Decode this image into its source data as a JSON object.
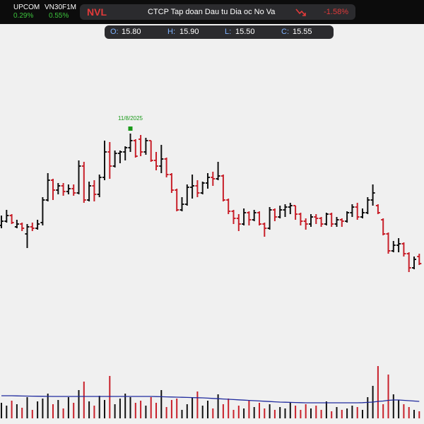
{
  "header": {
    "indices": [
      {
        "name": "UPCOM",
        "change": "0.29%"
      },
      {
        "name": "VN30F1M",
        "change": "0.55%"
      }
    ],
    "symbol": "NVL",
    "company": "CTCP Tap doan Dau tu Dia oc No Va",
    "change": "-1.58%"
  },
  "ohlc_box": [
    {
      "label": "O:",
      "value": "15.80"
    },
    {
      "label": "H:",
      "value": "15.90"
    },
    {
      "label": "L:",
      "value": "15.50"
    },
    {
      "label": "C:",
      "value": "15.55"
    }
  ],
  "chart_data": {
    "type": "ohlc",
    "annotation": "11/8/2025",
    "annotation_color": "#1a9a1a",
    "up_color": "#111111",
    "down_color": "#c8202a",
    "ma_color": "#1f2a9e",
    "ylim": [
      12,
      23.5
    ],
    "volume_ylim": [
      0,
      80
    ],
    "open": [
      16.9,
      17.05,
      17.25,
      16.85,
      16.95,
      16.6,
      16.85,
      16.8,
      17.0,
      17.8,
      18.5,
      18.15,
      18.3,
      18.1,
      18.2,
      18.05,
      19.0,
      17.8,
      18.3,
      18.0,
      18.6,
      19.5,
      19.0,
      19.45,
      19.5,
      19.65,
      19.9,
      19.95,
      19.5,
      19.9,
      19.2,
      19.0,
      19.25,
      18.7,
      18.15,
      17.45,
      17.65,
      18.25,
      18.3,
      18.05,
      18.4,
      18.6,
      18.55,
      18.65,
      17.8,
      17.4,
      17.15,
      16.95,
      17.35,
      17.1,
      17.35,
      16.95,
      16.8,
      17.45,
      17.2,
      17.45,
      17.55,
      17.6,
      17.3,
      17.05,
      16.95,
      17.2,
      17.15,
      16.95,
      17.3,
      16.95,
      17.1,
      17.05,
      17.35,
      17.55,
      17.2,
      17.35,
      17.8,
      17.6,
      17.1,
      16.6,
      16.0,
      16.2,
      16.25,
      15.9,
      15.4,
      15.8
    ],
    "high": [
      17.25,
      17.45,
      17.3,
      17.1,
      17.0,
      16.95,
      17.0,
      17.1,
      17.9,
      18.75,
      18.55,
      18.4,
      18.4,
      18.35,
      18.35,
      19.2,
      19.15,
      18.45,
      18.5,
      18.7,
      19.9,
      19.85,
      19.55,
      19.55,
      19.7,
      20.15,
      19.95,
      20.1,
      20.0,
      19.9,
      19.5,
      19.75,
      19.3,
      18.75,
      18.2,
      17.9,
      18.35,
      18.7,
      18.5,
      18.45,
      18.75,
      18.8,
      19.15,
      18.7,
      17.85,
      17.45,
      17.3,
      17.5,
      17.4,
      17.45,
      17.4,
      17.0,
      17.55,
      17.5,
      17.6,
      17.65,
      17.7,
      17.6,
      17.35,
      17.15,
      17.3,
      17.3,
      17.2,
      17.35,
      17.35,
      17.2,
      17.15,
      17.4,
      17.65,
      17.7,
      17.5,
      17.9,
      18.35,
      17.65,
      17.15,
      16.65,
      16.35,
      16.45,
      16.3,
      15.95,
      15.8,
      15.9
    ],
    "low": [
      16.8,
      17.0,
      16.95,
      16.8,
      16.7,
      16.1,
      16.7,
      16.75,
      16.9,
      17.75,
      17.8,
      18.0,
      17.95,
      18.0,
      17.95,
      18.0,
      17.7,
      17.75,
      17.75,
      17.9,
      18.5,
      18.55,
      18.95,
      19.1,
      19.2,
      19.5,
      19.3,
      19.35,
      19.4,
      19.15,
      18.85,
      18.75,
      18.6,
      18.05,
      17.4,
      17.4,
      17.6,
      17.85,
      17.9,
      18.0,
      18.2,
      18.3,
      18.5,
      17.75,
      17.3,
      16.95,
      16.7,
      16.9,
      16.9,
      17.05,
      16.9,
      16.5,
      16.75,
      17.05,
      17.15,
      17.2,
      17.3,
      17.1,
      16.9,
      16.75,
      16.85,
      16.95,
      16.85,
      16.9,
      16.85,
      16.85,
      16.85,
      17.0,
      17.2,
      17.1,
      17.15,
      17.3,
      17.6,
      17.3,
      16.55,
      15.9,
      15.95,
      15.95,
      15.8,
      15.25,
      15.35,
      15.5
    ],
    "close": [
      17.05,
      17.25,
      17.0,
      16.95,
      16.8,
      16.85,
      16.8,
      16.95,
      17.8,
      18.5,
      18.15,
      18.3,
      18.1,
      18.2,
      18.05,
      19.0,
      17.8,
      18.3,
      18.0,
      18.6,
      19.5,
      19.0,
      19.45,
      19.5,
      19.65,
      19.9,
      19.35,
      19.5,
      19.9,
      19.2,
      19.0,
      19.25,
      18.7,
      18.15,
      17.45,
      17.65,
      18.25,
      18.3,
      18.05,
      18.4,
      18.6,
      18.55,
      18.65,
      17.8,
      17.4,
      17.15,
      16.95,
      17.35,
      17.1,
      17.35,
      16.95,
      16.8,
      17.45,
      17.2,
      17.45,
      17.55,
      17.6,
      17.3,
      17.05,
      16.95,
      17.2,
      17.15,
      16.95,
      17.3,
      16.95,
      17.1,
      17.05,
      17.35,
      17.55,
      17.2,
      17.35,
      17.8,
      18.05,
      17.35,
      16.6,
      16.0,
      16.2,
      16.25,
      15.9,
      15.4,
      15.7,
      15.55
    ],
    "volume": [
      22,
      18,
      25,
      20,
      15,
      30,
      12,
      24,
      28,
      35,
      20,
      26,
      14,
      30,
      22,
      40,
      52,
      24,
      18,
      32,
      26,
      60,
      20,
      28,
      35,
      30,
      22,
      25,
      18,
      30,
      22,
      40,
      16,
      26,
      28,
      12,
      20,
      30,
      38,
      18,
      25,
      14,
      34,
      20,
      28,
      12,
      18,
      14,
      26,
      16,
      22,
      14,
      20,
      12,
      16,
      14,
      22,
      18,
      12,
      20,
      14,
      18,
      12,
      24,
      10,
      16,
      12,
      14,
      18,
      16,
      12,
      30,
      46,
      74,
      20,
      62,
      34,
      26,
      20,
      16,
      12,
      10
    ],
    "volume_ma": [
      32,
      32,
      32,
      31.8,
      31.6,
      31.5,
      31.4,
      31.3,
      31.2,
      31.1,
      31,
      31,
      31,
      31,
      31,
      31,
      31,
      31,
      31,
      31,
      31,
      31,
      31,
      31,
      31,
      31,
      31,
      31,
      31,
      31,
      30.8,
      30.6,
      30.4,
      30.2,
      30,
      29.8,
      29.6,
      29.4,
      29.2,
      29,
      28.6,
      28.2,
      27.8,
      27.4,
      27,
      26.6,
      26.2,
      25.8,
      25.4,
      25,
      24.6,
      24.2,
      23.8,
      23.4,
      23,
      22.8,
      22.6,
      22.4,
      22.2,
      22,
      22,
      22,
      22,
      22,
      22,
      22,
      22,
      22,
      22,
      22,
      22.2,
      22.6,
      23,
      24,
      24.5,
      25.5,
      26,
      26,
      25.5,
      25,
      24.5,
      24
    ]
  }
}
